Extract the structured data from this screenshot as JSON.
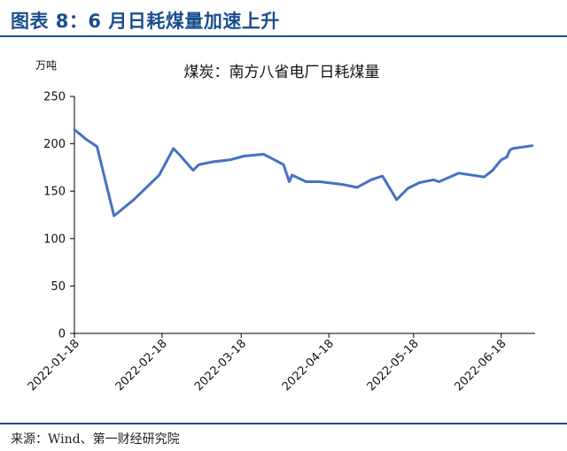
{
  "figure": {
    "title": "图表 8：6 月日耗煤量加速上升",
    "source": "来源：Wind、第一财经研究院"
  },
  "colors": {
    "accent": "#1a4f8f",
    "series": "#4472c4",
    "axis": "#000000"
  },
  "chart_data": {
    "type": "line",
    "title": "煤炭：南方八省电厂日耗煤量",
    "ylabel": "万吨",
    "xlabel": "",
    "ylim": [
      0,
      250
    ],
    "yticks": [
      0,
      50,
      100,
      150,
      200,
      250
    ],
    "xlim": [
      "2022-01-18",
      "2022-06-30"
    ],
    "xticks": [
      "2022-01-18",
      "2022-02-18",
      "2022-03-18",
      "2022-04-18",
      "2022-05-18",
      "2022-06-18"
    ],
    "grid": false,
    "legend": "none",
    "series": [
      {
        "name": "",
        "x": [
          "2022-01-18",
          "2022-01-22",
          "2022-01-26",
          "2022-02-01",
          "2022-02-08",
          "2022-02-17",
          "2022-02-22",
          "2022-02-24",
          "2022-02-29-skip",
          "2022-03-03",
          "2022-03-08",
          "2022-03-14",
          "2022-03-19",
          "2022-03-26",
          "2022-04-02",
          "2022-04-04",
          "2022-04-05",
          "2022-04-10",
          "2022-04-15",
          "2022-04-23",
          "2022-04-28",
          "2022-05-03",
          "2022-05-07",
          "2022-05-12",
          "2022-05-16",
          "2022-05-20",
          "2022-05-25",
          "2022-05-27",
          "2022-06-03",
          "2022-06-12",
          "2022-06-15",
          "2022-06-18",
          "2022-06-20",
          "2022-06-21",
          "2022-06-22",
          "2022-06-29"
        ],
        "values": [
          215,
          205,
          197,
          124,
          141,
          167,
          195,
          189,
          172,
          178,
          181,
          183,
          187,
          189,
          178,
          160,
          167,
          160,
          160,
          157,
          154,
          162,
          166,
          141,
          153,
          159,
          162,
          160,
          169,
          165,
          172,
          183,
          186,
          193,
          195,
          198
        ]
      }
    ]
  }
}
